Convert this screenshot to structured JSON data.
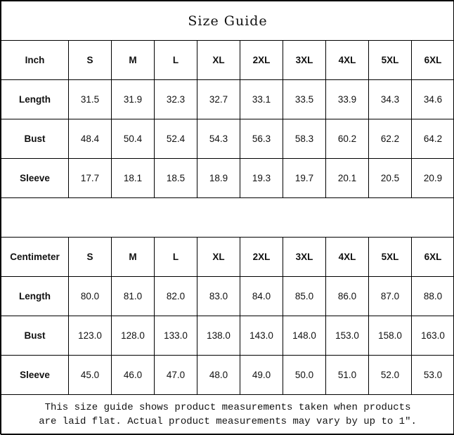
{
  "title": "Size Guide",
  "sizes": [
    "S",
    "M",
    "L",
    "XL",
    "2XL",
    "3XL",
    "4XL",
    "5XL",
    "6XL"
  ],
  "tables": [
    {
      "unit": "Inch",
      "rows": [
        {
          "label": "Length",
          "values": [
            "31.5",
            "31.9",
            "32.3",
            "32.7",
            "33.1",
            "33.5",
            "33.9",
            "34.3",
            "34.6"
          ]
        },
        {
          "label": "Bust",
          "values": [
            "48.4",
            "50.4",
            "52.4",
            "54.3",
            "56.3",
            "58.3",
            "60.2",
            "62.2",
            "64.2"
          ]
        },
        {
          "label": "Sleeve",
          "values": [
            "17.7",
            "18.1",
            "18.5",
            "18.9",
            "19.3",
            "19.7",
            "20.1",
            "20.5",
            "20.9"
          ]
        }
      ]
    },
    {
      "unit": "Centimeter",
      "rows": [
        {
          "label": "Length",
          "values": [
            "80.0",
            "81.0",
            "82.0",
            "83.0",
            "84.0",
            "85.0",
            "86.0",
            "87.0",
            "88.0"
          ]
        },
        {
          "label": "Bust",
          "values": [
            "123.0",
            "128.0",
            "133.0",
            "138.0",
            "143.0",
            "148.0",
            "153.0",
            "158.0",
            "163.0"
          ]
        },
        {
          "label": "Sleeve",
          "values": [
            "45.0",
            "46.0",
            "47.0",
            "48.0",
            "49.0",
            "50.0",
            "51.0",
            "52.0",
            "53.0"
          ]
        }
      ]
    }
  ],
  "note": {
    "line1": "This size guide shows product measurements taken when products",
    "line2": "are laid flat. Actual product measurements may vary by up to 1″."
  }
}
